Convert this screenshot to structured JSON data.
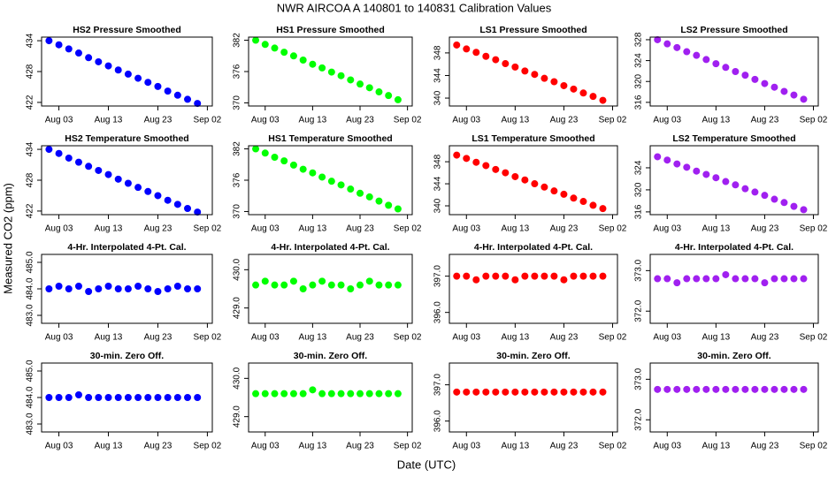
{
  "title": "NWR   AIRCOA A   140801 to 140831   Calibration Values",
  "ylabel": "Measured CO2 (ppm)",
  "xlabel": "Date (UTC)",
  "chart_data": [
    {
      "type": "scatter",
      "title": "HS2 Pressure Smoothed",
      "color": "#0000ff",
      "x": [
        1,
        3,
        5,
        7,
        9,
        11,
        13,
        15,
        17,
        19,
        21,
        23,
        25,
        27,
        29,
        31
      ],
      "values": [
        434.0,
        433.2,
        432.4,
        431.6,
        430.7,
        429.9,
        429.1,
        428.3,
        427.5,
        426.7,
        425.9,
        425.1,
        424.2,
        423.4,
        422.6,
        421.8
      ],
      "xlim": [
        -0.5,
        34
      ],
      "xticks": [
        {
          "value": 3,
          "label": "Aug 03"
        },
        {
          "value": 13,
          "label": "Aug 13"
        },
        {
          "value": 23,
          "label": "Aug 23"
        },
        {
          "value": 33,
          "label": "Sep 02"
        }
      ],
      "ylim": [
        421.3,
        434.7
      ],
      "yticks": [
        422,
        428,
        434
      ]
    },
    {
      "type": "scatter",
      "title": "HS1 Pressure Smoothed",
      "color": "#00ff00",
      "x": [
        1,
        3,
        5,
        7,
        9,
        11,
        13,
        15,
        17,
        19,
        21,
        23,
        25,
        27,
        29,
        31
      ],
      "values": [
        382.0,
        381.2,
        380.5,
        379.7,
        379.0,
        378.2,
        377.4,
        376.7,
        375.9,
        375.2,
        374.4,
        373.6,
        372.9,
        372.1,
        371.4,
        370.6
      ],
      "xlim": [
        -0.5,
        34
      ],
      "xticks": [
        {
          "value": 3,
          "label": "Aug 03"
        },
        {
          "value": 13,
          "label": "Aug 13"
        },
        {
          "value": 23,
          "label": "Aug 23"
        },
        {
          "value": 33,
          "label": "Sep 02"
        }
      ],
      "ylim": [
        369.4,
        382.6
      ],
      "yticks": [
        370,
        376,
        382
      ]
    },
    {
      "type": "scatter",
      "title": "LS1 Pressure Smoothed",
      "color": "#ff0000",
      "x": [
        1,
        3,
        5,
        7,
        9,
        11,
        13,
        15,
        17,
        19,
        21,
        23,
        25,
        27,
        29,
        31
      ],
      "values": [
        349.4,
        348.7,
        348.1,
        347.4,
        346.8,
        346.1,
        345.5,
        344.8,
        344.2,
        343.5,
        342.9,
        342.2,
        341.6,
        340.9,
        340.3,
        339.6
      ],
      "xlim": [
        -0.5,
        34
      ],
      "xticks": [
        {
          "value": 3,
          "label": "Aug 03"
        },
        {
          "value": 13,
          "label": "Aug 13"
        },
        {
          "value": 23,
          "label": "Aug 23"
        },
        {
          "value": 33,
          "label": "Sep 02"
        }
      ],
      "ylim": [
        338.6,
        350.8
      ],
      "yticks": [
        340,
        344,
        348
      ]
    },
    {
      "type": "scatter",
      "title": "LS2 Pressure Smoothed",
      "color": "#a020f0",
      "x": [
        1,
        3,
        5,
        7,
        9,
        11,
        13,
        15,
        17,
        19,
        21,
        23,
        25,
        27,
        29,
        31
      ],
      "values": [
        328.0,
        327.2,
        326.5,
        325.7,
        325.0,
        324.2,
        323.4,
        322.7,
        321.9,
        321.2,
        320.4,
        319.6,
        318.9,
        318.1,
        317.4,
        316.6
      ],
      "xlim": [
        -0.5,
        34
      ],
      "xticks": [
        {
          "value": 3,
          "label": "Aug 03"
        },
        {
          "value": 13,
          "label": "Aug 13"
        },
        {
          "value": 23,
          "label": "Aug 23"
        },
        {
          "value": 33,
          "label": "Sep 02"
        }
      ],
      "ylim": [
        315.3,
        328.5
      ],
      "yticks": [
        316,
        320,
        324,
        328
      ]
    },
    {
      "type": "scatter",
      "title": "HS2 Temperature Smoothed",
      "color": "#0000ff",
      "x": [
        1,
        3,
        5,
        7,
        9,
        11,
        13,
        15,
        17,
        19,
        21,
        23,
        25,
        27,
        29,
        31
      ],
      "values": [
        434.0,
        433.2,
        432.3,
        431.5,
        430.7,
        429.9,
        429.1,
        428.2,
        427.4,
        426.6,
        425.8,
        425.0,
        424.1,
        423.3,
        422.5,
        421.8
      ],
      "xlim": [
        -0.5,
        34
      ],
      "xticks": [
        {
          "value": 3,
          "label": "Aug 03"
        },
        {
          "value": 13,
          "label": "Aug 13"
        },
        {
          "value": 23,
          "label": "Aug 23"
        },
        {
          "value": 33,
          "label": "Sep 02"
        }
      ],
      "ylim": [
        421.3,
        434.7
      ],
      "yticks": [
        422,
        428,
        434
      ]
    },
    {
      "type": "scatter",
      "title": "HS1 Temperature Smoothed",
      "color": "#00ff00",
      "x": [
        1,
        3,
        5,
        7,
        9,
        11,
        13,
        15,
        17,
        19,
        21,
        23,
        25,
        27,
        29,
        31
      ],
      "values": [
        382.0,
        381.2,
        380.4,
        379.7,
        378.9,
        378.1,
        377.4,
        376.6,
        375.8,
        375.1,
        374.3,
        373.5,
        372.8,
        372.0,
        371.2,
        370.5
      ],
      "xlim": [
        -0.5,
        34
      ],
      "xticks": [
        {
          "value": 3,
          "label": "Aug 03"
        },
        {
          "value": 13,
          "label": "Aug 13"
        },
        {
          "value": 23,
          "label": "Aug 23"
        },
        {
          "value": 33,
          "label": "Sep 02"
        }
      ],
      "ylim": [
        369.4,
        382.6
      ],
      "yticks": [
        370,
        376,
        382
      ]
    },
    {
      "type": "scatter",
      "title": "LS1 Temperature Smoothed",
      "color": "#ff0000",
      "x": [
        1,
        3,
        5,
        7,
        9,
        11,
        13,
        15,
        17,
        19,
        21,
        23,
        25,
        27,
        29,
        31
      ],
      "values": [
        349.2,
        348.6,
        347.9,
        347.3,
        346.6,
        346.0,
        345.3,
        344.7,
        344.0,
        343.4,
        342.7,
        342.1,
        341.4,
        340.8,
        340.1,
        339.5
      ],
      "xlim": [
        -0.5,
        34
      ],
      "xticks": [
        {
          "value": 3,
          "label": "Aug 03"
        },
        {
          "value": 13,
          "label": "Aug 13"
        },
        {
          "value": 23,
          "label": "Aug 23"
        },
        {
          "value": 33,
          "label": "Sep 02"
        }
      ],
      "ylim": [
        338.4,
        350.9
      ],
      "yticks": [
        340,
        344,
        348
      ]
    },
    {
      "type": "scatter",
      "title": "LS2 Temperature Smoothed",
      "color": "#a020f0",
      "x": [
        1,
        3,
        5,
        7,
        9,
        11,
        13,
        15,
        17,
        19,
        21,
        23,
        25,
        27,
        29,
        31
      ],
      "values": [
        326.0,
        325.4,
        324.7,
        324.1,
        323.4,
        322.8,
        322.2,
        321.5,
        320.9,
        320.2,
        319.6,
        319.0,
        318.3,
        317.7,
        317.0,
        316.4
      ],
      "xlim": [
        -0.5,
        34
      ],
      "xticks": [
        {
          "value": 3,
          "label": "Aug 03"
        },
        {
          "value": 13,
          "label": "Aug 13"
        },
        {
          "value": 23,
          "label": "Aug 23"
        },
        {
          "value": 33,
          "label": "Sep 02"
        }
      ],
      "ylim": [
        315.5,
        328
      ],
      "yticks": [
        316,
        320,
        324
      ]
    },
    {
      "type": "scatter",
      "title": "4-Hr. Interpolated 4-Pt. Cal.",
      "color": "#0000ff",
      "x": [
        1,
        3,
        5,
        7,
        9,
        11,
        13,
        15,
        17,
        19,
        21,
        23,
        25,
        27,
        29,
        31
      ],
      "values": [
        484.0,
        484.1,
        484.0,
        484.1,
        483.9,
        484.0,
        484.1,
        484.0,
        484.0,
        484.1,
        484.0,
        483.9,
        484.0,
        484.1,
        484.0,
        484.0
      ],
      "xlim": [
        -0.5,
        34
      ],
      "xticks": [
        {
          "value": 3,
          "label": "Aug 03"
        },
        {
          "value": 13,
          "label": "Aug 13"
        },
        {
          "value": 23,
          "label": "Aug 23"
        },
        {
          "value": 33,
          "label": "Sep 02"
        }
      ],
      "ylim": [
        482.7,
        485.3
      ],
      "yticks": [
        {
          "value": 483,
          "label": "483.0"
        },
        {
          "value": 484,
          "label": "484.0"
        },
        {
          "value": 485,
          "label": "485.0"
        }
      ]
    },
    {
      "type": "scatter",
      "title": "4-Hr. Interpolated 4-Pt. Cal.",
      "color": "#00ff00",
      "x": [
        1,
        3,
        5,
        7,
        9,
        11,
        13,
        15,
        17,
        19,
        21,
        23,
        25,
        27,
        29,
        31
      ],
      "values": [
        429.6,
        429.7,
        429.6,
        429.6,
        429.7,
        429.5,
        429.6,
        429.7,
        429.6,
        429.6,
        429.5,
        429.6,
        429.7,
        429.6,
        429.6,
        429.6
      ],
      "xlim": [
        -0.5,
        34
      ],
      "xticks": [
        {
          "value": 3,
          "label": "Aug 03"
        },
        {
          "value": 13,
          "label": "Aug 13"
        },
        {
          "value": 23,
          "label": "Aug 23"
        },
        {
          "value": 33,
          "label": "Sep 02"
        }
      ],
      "ylim": [
        428.6,
        430.4
      ],
      "yticks": [
        {
          "value": 429,
          "label": "429.0"
        },
        {
          "value": 430,
          "label": "430.0"
        }
      ]
    },
    {
      "type": "scatter",
      "title": "4-Hr. Interpolated 4-Pt. Cal.",
      "color": "#ff0000",
      "x": [
        1,
        3,
        5,
        7,
        9,
        11,
        13,
        15,
        17,
        19,
        21,
        23,
        25,
        27,
        29,
        31
      ],
      "values": [
        397.0,
        397.0,
        396.9,
        397.0,
        397.0,
        397.0,
        396.9,
        397.0,
        397.0,
        397.0,
        397.0,
        396.9,
        397.0,
        397.0,
        397.0,
        397.0
      ],
      "xlim": [
        -0.5,
        34
      ],
      "xticks": [
        {
          "value": 3,
          "label": "Aug 03"
        },
        {
          "value": 13,
          "label": "Aug 13"
        },
        {
          "value": 23,
          "label": "Aug 23"
        },
        {
          "value": 33,
          "label": "Sep 02"
        }
      ],
      "ylim": [
        395.7,
        397.6
      ],
      "yticks": [
        {
          "value": 396,
          "label": "396.0"
        },
        {
          "value": 397,
          "label": "397.0"
        }
      ]
    },
    {
      "type": "scatter",
      "title": "4-Hr. Interpolated 4-Pt. Cal.",
      "color": "#a020f0",
      "x": [
        1,
        3,
        5,
        7,
        9,
        11,
        13,
        15,
        17,
        19,
        21,
        23,
        25,
        27,
        29,
        31
      ],
      "values": [
        372.8,
        372.8,
        372.7,
        372.8,
        372.8,
        372.8,
        372.8,
        372.9,
        372.8,
        372.8,
        372.8,
        372.7,
        372.8,
        372.8,
        372.8,
        372.8
      ],
      "xlim": [
        -0.5,
        34
      ],
      "xticks": [
        {
          "value": 3,
          "label": "Aug 03"
        },
        {
          "value": 13,
          "label": "Aug 13"
        },
        {
          "value": 23,
          "label": "Aug 23"
        },
        {
          "value": 33,
          "label": "Sep 02"
        }
      ],
      "ylim": [
        371.7,
        373.4
      ],
      "yticks": [
        {
          "value": 372,
          "label": "372.0"
        },
        {
          "value": 373,
          "label": "373.0"
        }
      ]
    },
    {
      "type": "scatter",
      "title": "30-min. Zero Off.",
      "color": "#0000ff",
      "x": [
        1,
        3,
        5,
        7,
        9,
        11,
        13,
        15,
        17,
        19,
        21,
        23,
        25,
        27,
        29,
        31
      ],
      "values": [
        484.0,
        484.0,
        484.0,
        484.1,
        484.0,
        484.0,
        484.0,
        484.0,
        484.0,
        484.0,
        484.0,
        484.0,
        484.0,
        484.0,
        484.0,
        484.0
      ],
      "xlim": [
        -0.5,
        34
      ],
      "xticks": [
        {
          "value": 3,
          "label": "Aug 03"
        },
        {
          "value": 13,
          "label": "Aug 13"
        },
        {
          "value": 23,
          "label": "Aug 23"
        },
        {
          "value": 33,
          "label": "Sep 02"
        }
      ],
      "ylim": [
        482.7,
        485.3
      ],
      "yticks": [
        {
          "value": 483,
          "label": "483.0"
        },
        {
          "value": 484,
          "label": "484.0"
        },
        {
          "value": 485,
          "label": "485.0"
        }
      ]
    },
    {
      "type": "scatter",
      "title": "30-min. Zero Off.",
      "color": "#00ff00",
      "x": [
        1,
        3,
        5,
        7,
        9,
        11,
        13,
        15,
        17,
        19,
        21,
        23,
        25,
        27,
        29,
        31
      ],
      "values": [
        429.6,
        429.6,
        429.6,
        429.6,
        429.6,
        429.6,
        429.7,
        429.6,
        429.6,
        429.6,
        429.6,
        429.6,
        429.6,
        429.6,
        429.6,
        429.6
      ],
      "xlim": [
        -0.5,
        34
      ],
      "xticks": [
        {
          "value": 3,
          "label": "Aug 03"
        },
        {
          "value": 13,
          "label": "Aug 13"
        },
        {
          "value": 23,
          "label": "Aug 23"
        },
        {
          "value": 33,
          "label": "Sep 02"
        }
      ],
      "ylim": [
        428.6,
        430.4
      ],
      "yticks": [
        {
          "value": 429,
          "label": "429.0"
        },
        {
          "value": 430,
          "label": "430.0"
        }
      ]
    },
    {
      "type": "scatter",
      "title": "30-min. Zero Off.",
      "color": "#ff0000",
      "x": [
        1,
        3,
        5,
        7,
        9,
        11,
        13,
        15,
        17,
        19,
        21,
        23,
        25,
        27,
        29,
        31
      ],
      "values": [
        396.8,
        396.8,
        396.8,
        396.8,
        396.8,
        396.8,
        396.8,
        396.8,
        396.8,
        396.8,
        396.8,
        396.8,
        396.8,
        396.8,
        396.8,
        396.8
      ],
      "xlim": [
        -0.5,
        34
      ],
      "xticks": [
        {
          "value": 3,
          "label": "Aug 03"
        },
        {
          "value": 13,
          "label": "Aug 13"
        },
        {
          "value": 23,
          "label": "Aug 23"
        },
        {
          "value": 33,
          "label": "Sep 02"
        }
      ],
      "ylim": [
        395.7,
        397.6
      ],
      "yticks": [
        {
          "value": 396,
          "label": "396.0"
        },
        {
          "value": 397,
          "label": "397.0"
        }
      ]
    },
    {
      "type": "scatter",
      "title": "30-min. Zero Off.",
      "color": "#a020f0",
      "x": [
        1,
        3,
        5,
        7,
        9,
        11,
        13,
        15,
        17,
        19,
        21,
        23,
        25,
        27,
        29,
        31
      ],
      "values": [
        372.75,
        372.75,
        372.75,
        372.75,
        372.75,
        372.75,
        372.75,
        372.75,
        372.75,
        372.75,
        372.75,
        372.75,
        372.75,
        372.75,
        372.75,
        372.75
      ],
      "xlim": [
        -0.5,
        34
      ],
      "xticks": [
        {
          "value": 3,
          "label": "Aug 03"
        },
        {
          "value": 13,
          "label": "Aug 13"
        },
        {
          "value": 23,
          "label": "Aug 23"
        },
        {
          "value": 33,
          "label": "Sep 02"
        }
      ],
      "ylim": [
        371.7,
        373.4
      ],
      "yticks": [
        {
          "value": 372,
          "label": "372.0"
        },
        {
          "value": 373,
          "label": "373.0"
        }
      ]
    }
  ]
}
